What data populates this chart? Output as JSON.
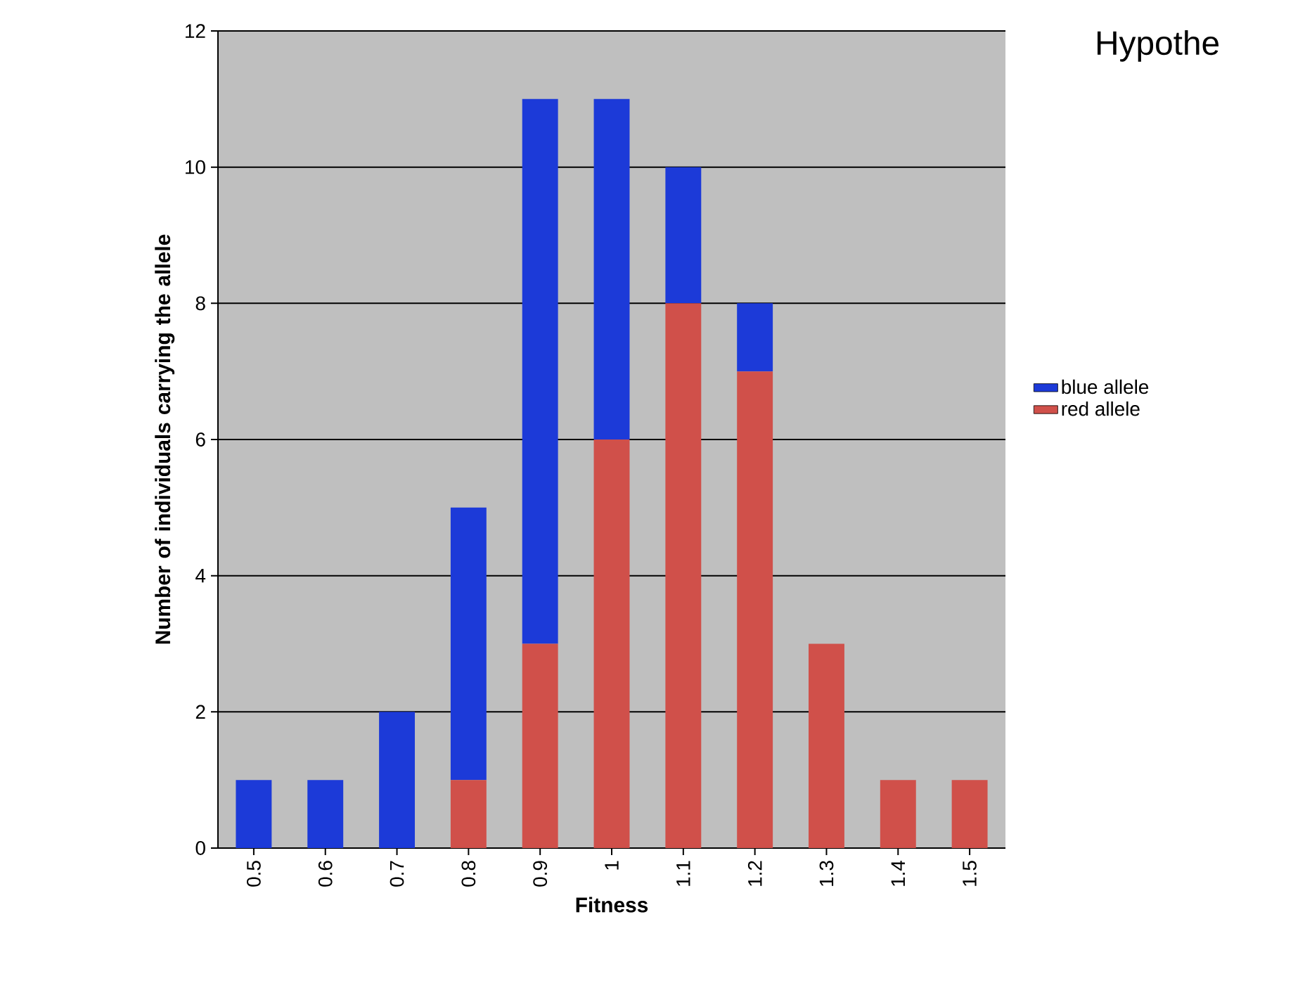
{
  "chart_data": {
    "type": "bar",
    "stacked": true,
    "categories": [
      "0.5",
      "0.6",
      "0.7",
      "0.8",
      "0.9",
      "1",
      "1.1",
      "1.2",
      "1.3",
      "1.4",
      "1.5"
    ],
    "series": [
      {
        "name": "red allele",
        "color": "#d0504a",
        "values": [
          0,
          0,
          0,
          1,
          3,
          6,
          8,
          7,
          3,
          1,
          1
        ]
      },
      {
        "name": "blue allele",
        "color": "#1c3ad8",
        "values": [
          1,
          1,
          2,
          4,
          8,
          5,
          2,
          1,
          0,
          0,
          0
        ]
      }
    ],
    "xlabel": "Fitness",
    "ylabel": "Number of individuals carrying the allele",
    "ylim": [
      0,
      12
    ],
    "yticks": [
      0,
      2,
      4,
      6,
      8,
      10,
      12
    ],
    "grid": "y",
    "legend": "right",
    "annotations": [
      "Hypothe"
    ]
  }
}
